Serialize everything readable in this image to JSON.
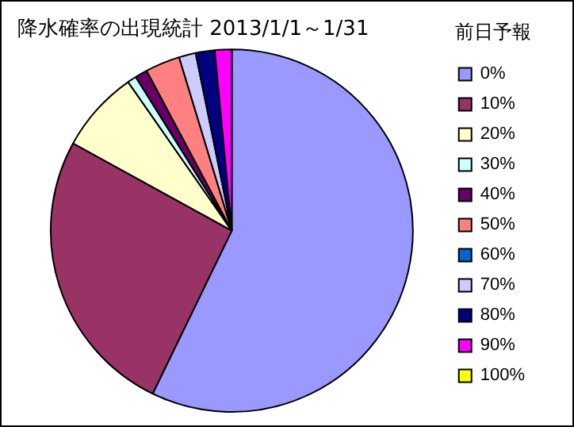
{
  "chart_data": {
    "type": "pie",
    "title": "降水確率の出現統計 2013/1/1～1/31",
    "legend_title": "前日予報",
    "legend": "right",
    "categories": [
      "0%",
      "10%",
      "20%",
      "30%",
      "40%",
      "50%",
      "60%",
      "70%",
      "80%",
      "90%",
      "100%"
    ],
    "values": [
      57.2,
      25.8,
      7.3,
      0.8,
      1.1,
      3.1,
      0,
      1.5,
      1.7,
      1.5,
      0
    ],
    "colors": [
      "#9999ff",
      "#993366",
      "#ffffcc",
      "#ccffff",
      "#660066",
      "#ff8080",
      "#0066cc",
      "#ccccff",
      "#000080",
      "#ff00ff",
      "#ffff00"
    ]
  }
}
